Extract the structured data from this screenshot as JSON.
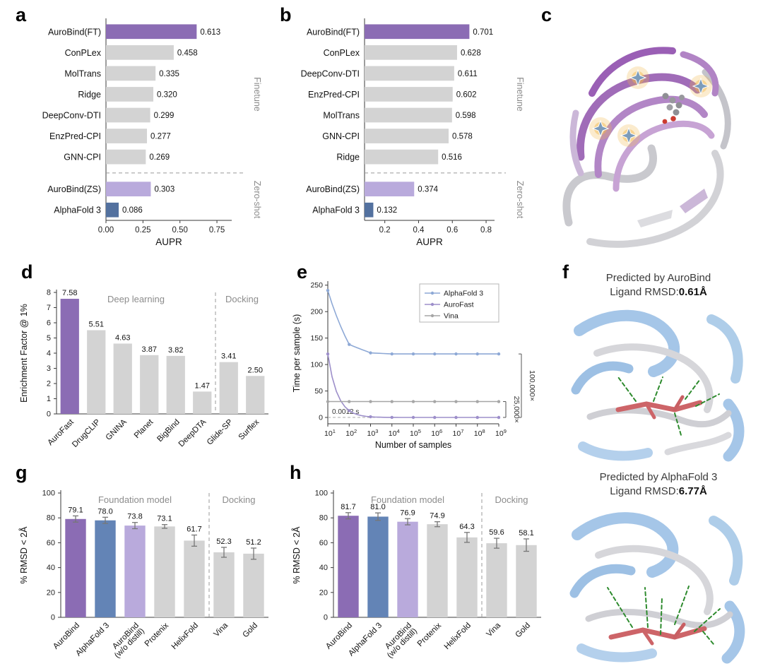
{
  "colors": {
    "accent_purple": "#8b6cb4",
    "light_purple": "#b9aadc",
    "steel_blue": "#53719f",
    "mid_blue": "#6384b6",
    "bar_gray": "#d3d3d3",
    "line_blue": "#8ea9d6",
    "line_purple": "#9d8fca",
    "line_gray": "#a6a6a6",
    "section_label_gray": "#8c8c8c",
    "axis_color": "#3a3a3a"
  },
  "panel_labels": {
    "a": "a",
    "b": "b",
    "c": "c",
    "d": "d",
    "e": "e",
    "f": "f",
    "g": "g",
    "h": "h"
  },
  "chart_data": [
    {
      "id": "a",
      "type": "bar",
      "orientation": "horizontal",
      "categories": [
        "AuroBind(FT)",
        "ConPLex",
        "MolTrans",
        "Ridge",
        "DeepConv-DTI",
        "EnzPred-CPI",
        "GNN-CPI",
        "AuroBind(ZS)",
        "AlphaFold 3"
      ],
      "values": [
        0.613,
        0.458,
        0.335,
        0.32,
        0.299,
        0.277,
        0.269,
        0.303,
        0.086
      ],
      "value_labels": [
        "0.613",
        "0.458",
        "0.335",
        "0.320",
        "0.299",
        "0.277",
        "0.269",
        "0.303",
        "0.086"
      ],
      "bar_color_keys": [
        "accent_purple",
        "bar_gray",
        "bar_gray",
        "bar_gray",
        "bar_gray",
        "bar_gray",
        "bar_gray",
        "light_purple",
        "steel_blue"
      ],
      "xlabel": "AUPR",
      "xlim": [
        0,
        0.85
      ],
      "xticks": [
        0,
        0.25,
        0.5,
        0.75
      ],
      "xtick_labels": [
        "0.00",
        "0.25",
        "0.50",
        "0.75"
      ],
      "separator_after_index": 6,
      "group_labels": [
        {
          "text": "Finetune",
          "from": 0,
          "to": 6
        },
        {
          "text": "Zero-shot",
          "from": 7,
          "to": 8
        }
      ]
    },
    {
      "id": "b",
      "type": "bar",
      "orientation": "horizontal",
      "categories": [
        "AuroBind(FT)",
        "ConPLex",
        "DeepConv-DTI",
        "EnzPred-CPI",
        "MolTrans",
        "GNN-CPI",
        "Ridge",
        "AuroBind(ZS)",
        "AlphaFold 3"
      ],
      "values": [
        0.701,
        0.628,
        0.611,
        0.602,
        0.598,
        0.578,
        0.516,
        0.374,
        0.132
      ],
      "value_labels": [
        "0.701",
        "0.628",
        "0.611",
        "0.602",
        "0.598",
        "0.578",
        "0.516",
        "0.374",
        "0.132"
      ],
      "bar_color_keys": [
        "accent_purple",
        "bar_gray",
        "bar_gray",
        "bar_gray",
        "bar_gray",
        "bar_gray",
        "bar_gray",
        "light_purple",
        "steel_blue"
      ],
      "xlabel": "AUPR",
      "xlim": [
        0.08,
        0.85
      ],
      "xticks": [
        0.2,
        0.4,
        0.6,
        0.8
      ],
      "xtick_labels": [
        "0.2",
        "0.4",
        "0.6",
        "0.8"
      ],
      "separator_after_index": 6,
      "group_labels": [
        {
          "text": "Finetune",
          "from": 0,
          "to": 6
        },
        {
          "text": "Zero-shot",
          "from": 7,
          "to": 8
        }
      ]
    },
    {
      "id": "d",
      "type": "bar",
      "orientation": "vertical",
      "categories": [
        [
          "AuroFast"
        ],
        [
          "DrugCLIP"
        ],
        [
          "GNINA"
        ],
        [
          "Planet"
        ],
        [
          "BigBind"
        ],
        [
          "DeepDTA"
        ],
        [
          "Glide-SP"
        ],
        [
          "Surflex"
        ]
      ],
      "values": [
        7.58,
        5.51,
        4.63,
        3.87,
        3.82,
        1.47,
        3.41,
        2.5
      ],
      "value_labels": [
        "7.58",
        "5.51",
        "4.63",
        "3.87",
        "3.82",
        "1.47",
        "3.41",
        "2.50"
      ],
      "bar_color_keys": [
        "accent_purple",
        "bar_gray",
        "bar_gray",
        "bar_gray",
        "bar_gray",
        "bar_gray",
        "bar_gray",
        "bar_gray"
      ],
      "ylabel": "Enrichment Factor @ 1%",
      "ylim": [
        0,
        8
      ],
      "yticks": [
        0,
        1,
        2,
        3,
        4,
        5,
        6,
        7,
        8
      ],
      "separator_after_index": 5,
      "sections": [
        {
          "text": "Deep learning",
          "from": 0,
          "to": 5
        },
        {
          "text": "Docking",
          "from": 6,
          "to": 7
        }
      ]
    },
    {
      "id": "e",
      "type": "line",
      "xlabel": "Number of samples",
      "ylabel": "Time per sample (s)",
      "x_exponents": [
        1,
        2,
        3,
        4,
        5,
        6,
        7,
        8,
        9
      ],
      "ylim": [
        0,
        250
      ],
      "yticks": [
        0,
        50,
        100,
        150,
        200,
        250
      ],
      "series": [
        {
          "name": "AlphaFold 3",
          "color_key": "line_blue",
          "values": [
            240,
            138,
            122,
            120,
            120,
            120,
            120,
            120,
            120
          ]
        },
        {
          "name": "AuroFast",
          "color_key": "line_purple",
          "values": [
            120,
            13,
            1.3,
            0.13,
            0.013,
            0.0012,
            0.0012,
            0.0012,
            0.0012
          ]
        },
        {
          "name": "Vina",
          "color_key": "line_gray",
          "values": [
            30,
            30,
            30,
            30,
            30,
            30,
            30,
            30,
            30
          ]
        }
      ],
      "legend_position": "top-right",
      "annotations": {
        "speedup_outer": "100,000×",
        "speedup_inner": "25,000×",
        "time_floor": "0.0012 s"
      }
    },
    {
      "id": "g",
      "type": "bar",
      "orientation": "vertical",
      "error_bars": true,
      "categories": [
        [
          "AuroBind"
        ],
        [
          "AlphaFold 3"
        ],
        [
          "AuroBind",
          "(w/o distill)"
        ],
        [
          "Protenix"
        ],
        [
          "HelixFold"
        ],
        [
          "Vina"
        ],
        [
          "Gold"
        ]
      ],
      "values": [
        79.1,
        78.0,
        73.8,
        73.1,
        61.7,
        52.3,
        51.2
      ],
      "errors": [
        2.5,
        2.5,
        2.5,
        1.5,
        4.5,
        4.0,
        4.5
      ],
      "value_labels": [
        "79.1",
        "78.0",
        "73.8",
        "73.1",
        "61.7",
        "52.3",
        "51.2"
      ],
      "bar_color_keys": [
        "accent_purple",
        "mid_blue",
        "light_purple",
        "bar_gray",
        "bar_gray",
        "bar_gray",
        "bar_gray"
      ],
      "ylabel": "% RMSD < 2Å",
      "ylim": [
        0,
        100
      ],
      "yticks": [
        0,
        20,
        40,
        60,
        80,
        100
      ],
      "separator_after_index": 4,
      "sections": [
        {
          "text": "Foundation model",
          "from": 0,
          "to": 4
        },
        {
          "text": "Docking",
          "from": 5,
          "to": 6
        }
      ]
    },
    {
      "id": "h",
      "type": "bar",
      "orientation": "vertical",
      "error_bars": true,
      "categories": [
        [
          "AuroBind"
        ],
        [
          "AlphaFold 3"
        ],
        [
          "AuroBind",
          "(w/o distill)"
        ],
        [
          "Protenix"
        ],
        [
          "HelixFold"
        ],
        [
          "Vina"
        ],
        [
          "Gold"
        ]
      ],
      "values": [
        81.7,
        81.0,
        76.9,
        74.9,
        64.3,
        59.6,
        58.1
      ],
      "errors": [
        2.5,
        3.0,
        2.5,
        2.0,
        4.0,
        4.0,
        5.0
      ],
      "value_labels": [
        "81.7",
        "81.0",
        "76.9",
        "74.9",
        "64.3",
        "59.6",
        "58.1"
      ],
      "bar_color_keys": [
        "accent_purple",
        "mid_blue",
        "light_purple",
        "bar_gray",
        "bar_gray",
        "bar_gray",
        "bar_gray"
      ],
      "ylabel": "% RMSD < 2Å",
      "ylim": [
        0,
        100
      ],
      "yticks": [
        0,
        20,
        40,
        60,
        80,
        100
      ],
      "separator_after_index": 4,
      "sections": [
        {
          "text": "Foundation model",
          "from": 0,
          "to": 4
        },
        {
          "text": "Docking",
          "from": 5,
          "to": 6
        }
      ]
    }
  ],
  "panel_f": {
    "top": {
      "title": "Predicted by AuroBind",
      "rmsd_prefix": "Ligand RMSD:",
      "rmsd_value": "0.61Å"
    },
    "bottom": {
      "title": "Predicted by AlphaFold 3",
      "rmsd_prefix": "Ligand RMSD:",
      "rmsd_value": "6.77Å"
    }
  }
}
